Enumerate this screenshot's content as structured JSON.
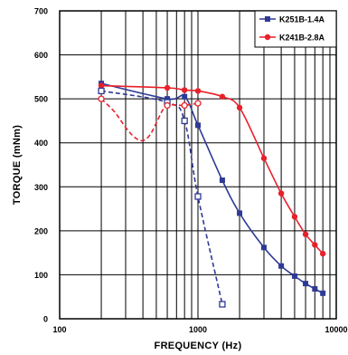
{
  "chart_data": {
    "type": "line",
    "title": "",
    "xlabel": "FREQUENCY (Hz)",
    "ylabel": "TORQUE (mNm)",
    "x_scale": "log",
    "xlim": [
      100,
      10000
    ],
    "ylim": [
      0,
      700
    ],
    "x_tick_labels": [
      "100",
      "1000",
      "10000"
    ],
    "y_tick_labels": [
      "0",
      "100",
      "200",
      "300",
      "400",
      "500",
      "600",
      "700"
    ],
    "grid": true,
    "legend_position": "top-right",
    "series": [
      {
        "name": "K251B-1.4A",
        "color": "#2e3a96",
        "marker": "square",
        "line_style": "solid",
        "x": [
          200,
          600,
          800,
          1000,
          1500,
          2000,
          3000,
          4000,
          5000,
          6000,
          7000,
          8000
        ],
        "y": [
          535,
          500,
          505,
          440,
          315,
          240,
          162,
          120,
          97,
          80,
          68,
          58
        ]
      },
      {
        "name": "K241B-2.8A",
        "color": "#e8202a",
        "marker": "circle",
        "line_style": "solid",
        "x": [
          200,
          600,
          800,
          1000,
          1500,
          2000,
          3000,
          4000,
          5000,
          6000,
          7000,
          8000
        ],
        "y": [
          530,
          525,
          520,
          518,
          505,
          480,
          365,
          285,
          232,
          192,
          168,
          148
        ]
      },
      {
        "name": "",
        "color": "#2e3a96",
        "marker": "square-open",
        "line_style": "dashed",
        "x": [
          200,
          600,
          800,
          1000,
          1500
        ],
        "y": [
          518,
          492,
          450,
          278,
          33
        ]
      },
      {
        "name": "",
        "color": "#e8202a",
        "marker": "circle-open",
        "line_style": "dashed",
        "x": [
          200,
          600,
          800,
          1000
        ],
        "y": [
          500,
          485,
          485,
          490
        ],
        "curve_x": [
          200,
          250,
          300,
          350,
          400,
          450,
          500,
          550,
          600,
          700,
          800,
          1000
        ],
        "curve_y": [
          500,
          470,
          435,
          412,
          405,
          418,
          445,
          472,
          485,
          486,
          485,
          490
        ]
      }
    ]
  }
}
